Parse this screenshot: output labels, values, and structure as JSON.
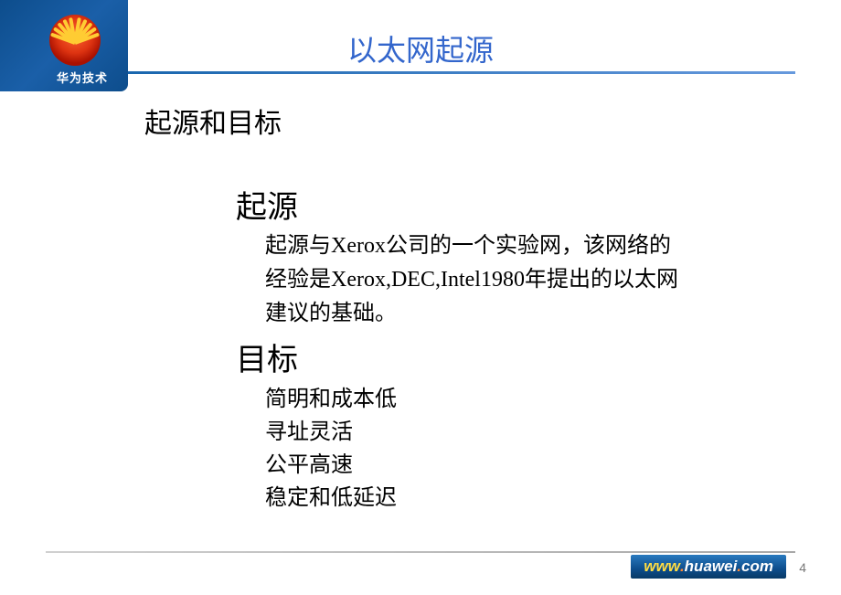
{
  "header": {
    "title": "以太网起源",
    "logo_text": "华为技术",
    "title_color": "#3366cc",
    "underline_gradient_from": "#1060a8",
    "underline_gradient_to": "#6699dd"
  },
  "content": {
    "section_title": "起源和目标",
    "origin": {
      "heading": "起源",
      "lines": [
        "起源与Xerox公司的一个实验网，该网络的",
        "经验是Xerox,DEC,Intel1980年提出的以太网",
        "建议的基础。"
      ]
    },
    "goal": {
      "heading": "目标",
      "items": [
        "简明和成本低",
        "寻址灵活",
        "公平高速",
        "稳定和低延迟"
      ]
    }
  },
  "footer": {
    "url_prefix": "www",
    "url_dot1": ".",
    "url_mid": "huawei",
    "url_dot2": ".",
    "url_suffix": "com",
    "page_number": "4"
  },
  "styling": {
    "body_width": 920,
    "body_height": 651,
    "background_color": "#ffffff",
    "section_title_fontsize": 30,
    "sub_heading_fontsize": 34,
    "sub_text_fontsize": 24,
    "logo_bg_gradient": [
      "#0d4d8c",
      "#1a5fa8",
      "#0d4d8c"
    ],
    "logo_sun_colors": [
      "#ff6633",
      "#dd3311",
      "#aa1100"
    ],
    "ray_color": "#ffcc33",
    "footer_box_gradient": [
      "#2a7abf",
      "#0d4d8c",
      "#083a66"
    ],
    "page_num_color": "#777777"
  }
}
